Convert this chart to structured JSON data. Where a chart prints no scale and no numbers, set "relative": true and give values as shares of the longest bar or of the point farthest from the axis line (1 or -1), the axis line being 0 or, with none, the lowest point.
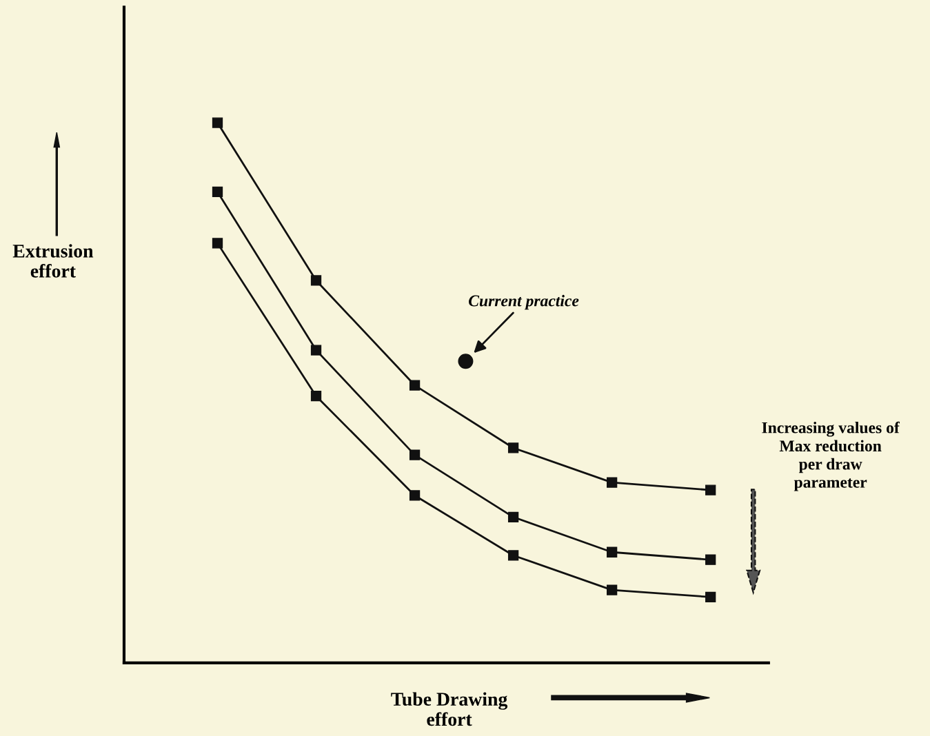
{
  "chart_data": {
    "type": "line",
    "relative": true,
    "xlabel": "Tube Drawing\neffort",
    "ylabel": "Extrusion\neffort",
    "marker": "square",
    "line_style": "solid",
    "tick_labels": false,
    "categories": [
      null,
      null,
      null,
      null,
      null,
      null
    ],
    "series": [
      {
        "color": "#111111",
        "values": [
          1.0,
          0.708,
          0.514,
          0.398,
          0.334,
          0.32
        ]
      },
      {
        "color": "#111111",
        "values": [
          0.872,
          0.579,
          0.385,
          0.27,
          0.205,
          0.191
        ]
      },
      {
        "color": "#111111",
        "values": [
          0.777,
          0.494,
          0.31,
          0.199,
          0.135,
          0.122
        ]
      }
    ],
    "annotations": [
      "Current practice",
      "Increasing values of\nMax reduction\nper draw\nparameter"
    ]
  }
}
